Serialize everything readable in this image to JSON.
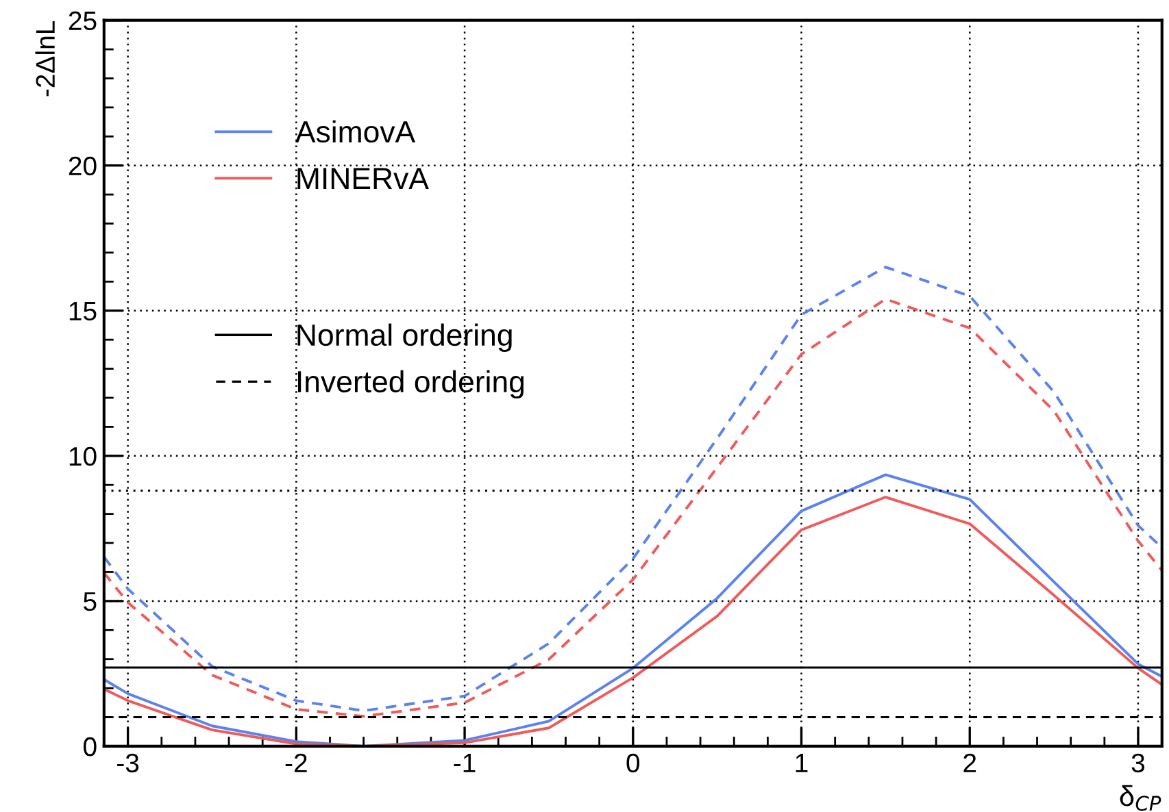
{
  "chart_data": {
    "type": "line",
    "xlabel": "δ$_{CP}$",
    "ylabel": "-2ΔlnL",
    "x": [
      -3.1416,
      -3,
      -2.5,
      -2,
      -1.6,
      -1,
      -0.5,
      0,
      0.5,
      1,
      1.5,
      2,
      2.5,
      3,
      3.1416
    ],
    "series": [
      {
        "name": "AsimovA",
        "color": "#5a82f0",
        "line_style": "solid",
        "values": [
          2.3,
          1.81,
          0.7,
          0.16,
          0,
          0.2,
          0.86,
          2.69,
          5.1,
          8.1,
          9.35,
          8.5,
          5.66,
          2.83,
          2.4
        ]
      },
      {
        "name": "MINERvA",
        "color": "#f05a5a",
        "line_style": "solid",
        "values": [
          1.97,
          1.57,
          0.56,
          0.08,
          0,
          0.12,
          0.63,
          2.36,
          4.48,
          7.45,
          8.58,
          7.66,
          5.2,
          2.69,
          2.12
        ]
      },
      {
        "color": "#5a82f0",
        "line_style": "dashed",
        "values": [
          6.52,
          5.42,
          2.75,
          1.57,
          1.22,
          1.73,
          3.54,
          6.46,
          10.6,
          14.86,
          16.5,
          15.5,
          12.2,
          7.6,
          6.84
        ]
      },
      {
        "color": "#f05a5a",
        "line_style": "dashed",
        "values": [
          5.97,
          4.95,
          2.45,
          1.27,
          1.03,
          1.5,
          2.99,
          5.74,
          9.6,
          13.5,
          15.4,
          14.4,
          11.55,
          7.07,
          6.05
        ]
      }
    ],
    "annotations": [
      "Normal ordering",
      "Inverted ordering"
    ],
    "ref_lines": [
      {
        "axis": "y",
        "value": 2.71,
        "color": "#000000",
        "line_style": "solid"
      },
      {
        "axis": "y",
        "value": 1,
        "color": "#000000",
        "line_style": "dashed"
      },
      {
        "axis": "y",
        "value": 8.8,
        "color": "#000000",
        "line_style": "dotted"
      }
    ],
    "xlim": [
      -3.1416,
      3.1416
    ],
    "xticks": [
      -3,
      -2,
      -1,
      0,
      1,
      2,
      3
    ],
    "ylim": [
      0,
      25
    ],
    "yticks": [
      0,
      5,
      10,
      15,
      20,
      25
    ],
    "grid": true,
    "legend": "top left",
    "marker": "none"
  }
}
